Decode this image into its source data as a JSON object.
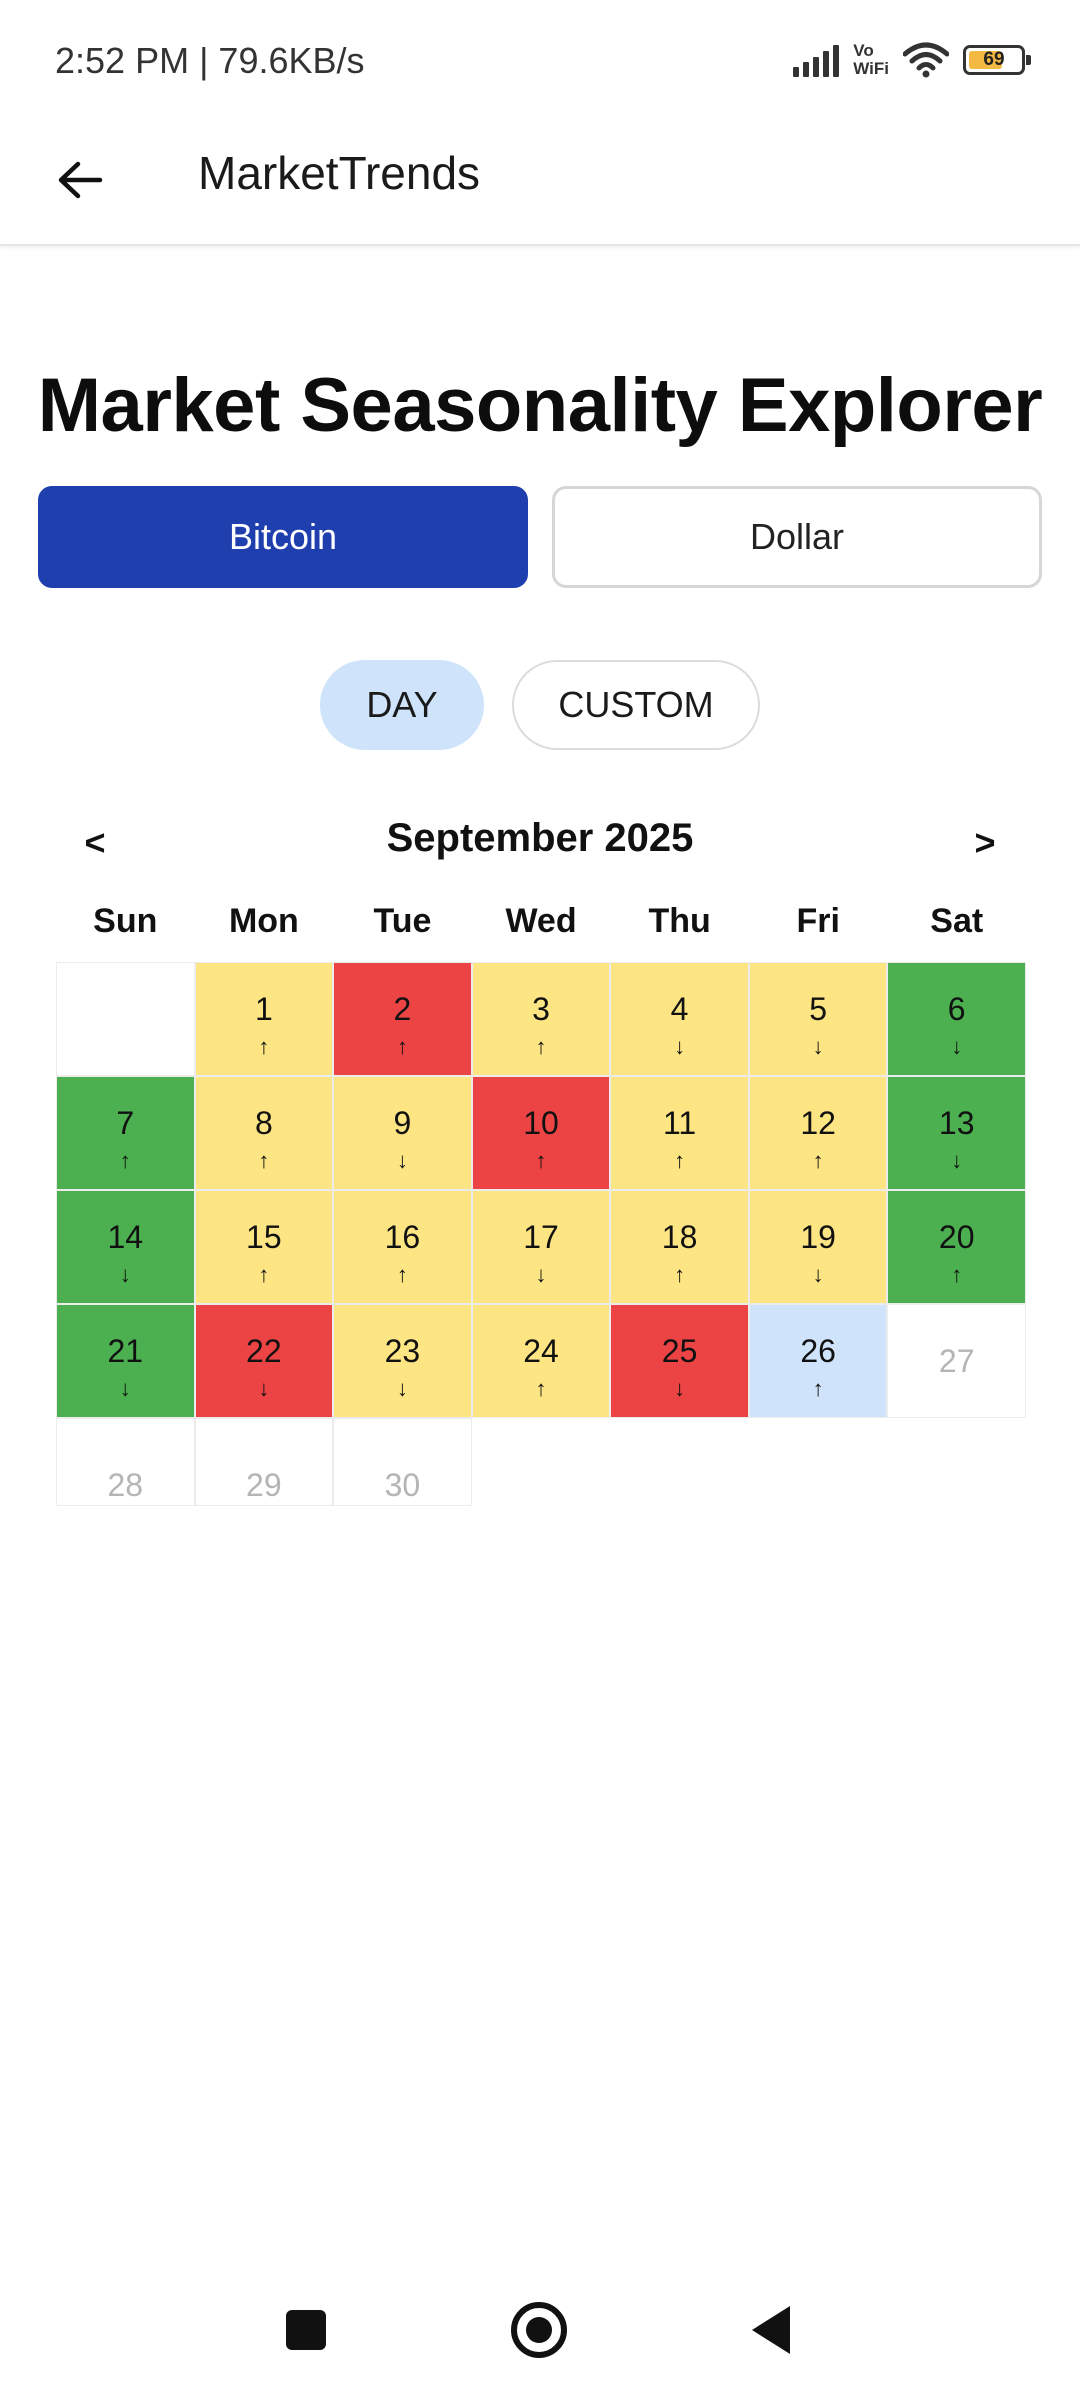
{
  "status_bar": {
    "time_speed": "2:52 PM | 79.6KB/s",
    "vowifi_line1": "Vo",
    "vowifi_line2": "WiFi",
    "battery_level": "69",
    "battery_color": "#f4b942"
  },
  "app_bar": {
    "title": "MarketTrends",
    "back_icon": "arrow-left-icon"
  },
  "page": {
    "title": "Market Seasonality Explorer"
  },
  "asset_toggle": {
    "selected": "Bitcoin",
    "options": [
      "Bitcoin",
      "Dollar"
    ],
    "active_color": "#1f3fae"
  },
  "mode_toggle": {
    "selected": "DAY",
    "options": [
      "DAY",
      "CUSTOM"
    ],
    "active_color": "#cfe3fb"
  },
  "calendar": {
    "month_label": "September 2025",
    "prev_label": "<",
    "next_label": ">",
    "weekdays": [
      "Sun",
      "Mon",
      "Tue",
      "Wed",
      "Thu",
      "Fri",
      "Sat"
    ],
    "legend_colors": {
      "green": "#4caf50",
      "yellow": "#fde584",
      "red": "#ec4444",
      "blue": "#cfe3fb",
      "future": "#ffffff"
    },
    "days": [
      {
        "day": "1",
        "arrow": "↑",
        "status": "yellow"
      },
      {
        "day": "2",
        "arrow": "↑",
        "status": "red"
      },
      {
        "day": "3",
        "arrow": "↑",
        "status": "yellow"
      },
      {
        "day": "4",
        "arrow": "↓",
        "status": "yellow"
      },
      {
        "day": "5",
        "arrow": "↓",
        "status": "yellow"
      },
      {
        "day": "6",
        "arrow": "↓",
        "status": "green"
      },
      {
        "day": "7",
        "arrow": "↑",
        "status": "green"
      },
      {
        "day": "8",
        "arrow": "↑",
        "status": "yellow"
      },
      {
        "day": "9",
        "arrow": "↓",
        "status": "yellow"
      },
      {
        "day": "10",
        "arrow": "↑",
        "status": "red"
      },
      {
        "day": "11",
        "arrow": "↑",
        "status": "yellow"
      },
      {
        "day": "12",
        "arrow": "↑",
        "status": "yellow"
      },
      {
        "day": "13",
        "arrow": "↓",
        "status": "green"
      },
      {
        "day": "14",
        "arrow": "↓",
        "status": "green"
      },
      {
        "day": "15",
        "arrow": "↑",
        "status": "yellow"
      },
      {
        "day": "16",
        "arrow": "↑",
        "status": "yellow"
      },
      {
        "day": "17",
        "arrow": "↓",
        "status": "yellow"
      },
      {
        "day": "18",
        "arrow": "↑",
        "status": "yellow"
      },
      {
        "day": "19",
        "arrow": "↓",
        "status": "yellow"
      },
      {
        "day": "20",
        "arrow": "↑",
        "status": "green"
      },
      {
        "day": "21",
        "arrow": "↓",
        "status": "green"
      },
      {
        "day": "22",
        "arrow": "↓",
        "status": "red"
      },
      {
        "day": "23",
        "arrow": "↓",
        "status": "yellow"
      },
      {
        "day": "24",
        "arrow": "↑",
        "status": "yellow"
      },
      {
        "day": "25",
        "arrow": "↓",
        "status": "red"
      },
      {
        "day": "26",
        "arrow": "↑",
        "status": "blue"
      },
      {
        "day": "27",
        "arrow": "",
        "status": "future"
      },
      {
        "day": "28",
        "arrow": "",
        "status": "future"
      },
      {
        "day": "29",
        "arrow": "",
        "status": "future"
      },
      {
        "day": "30",
        "arrow": "",
        "status": "future"
      }
    ]
  },
  "system_nav": {
    "recents_icon": "square-icon",
    "home_icon": "circle-icon",
    "back_icon": "triangle-back-icon"
  }
}
